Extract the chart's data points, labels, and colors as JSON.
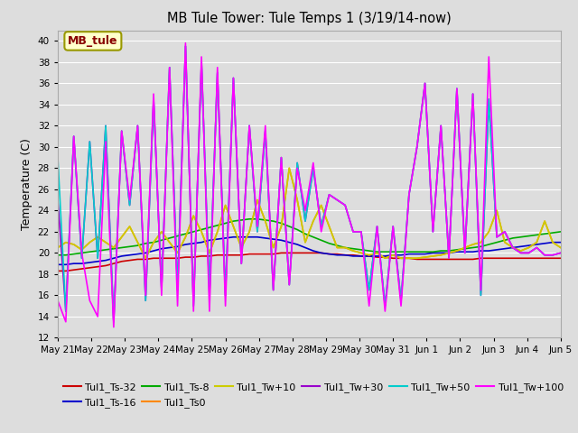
{
  "title": "MB Tule Tower: Tule Temps 1 (3/19/14-now)",
  "ylabel": "Temperature (C)",
  "ylim": [
    12,
    41
  ],
  "yticks": [
    12,
    14,
    16,
    18,
    20,
    22,
    24,
    26,
    28,
    30,
    32,
    34,
    36,
    38,
    40
  ],
  "background_color": "#dddddd",
  "grid_color": "#ffffff",
  "x_labels": [
    "May 21",
    "May 22",
    "May 23",
    "May 24",
    "May 25",
    "May 26",
    "May 27",
    "May 28",
    "May 29",
    "May 30",
    "May 31",
    "Jun 1",
    "Jun 2",
    "Jun 3",
    "Jun 4",
    "Jun 5"
  ],
  "series": {
    "Tul1_Ts-32": {
      "color": "#cc0000",
      "linewidth": 1.2,
      "values": [
        18.3,
        18.3,
        18.4,
        18.5,
        18.6,
        18.7,
        18.8,
        19.0,
        19.2,
        19.3,
        19.4,
        19.4,
        19.5,
        19.5,
        19.5,
        19.5,
        19.6,
        19.6,
        19.7,
        19.7,
        19.8,
        19.8,
        19.8,
        19.8,
        19.9,
        19.9,
        19.9,
        19.9,
        20.0,
        20.0,
        20.0,
        20.0,
        20.0,
        20.0,
        19.9,
        19.9,
        19.8,
        19.8,
        19.7,
        19.7,
        19.6,
        19.6,
        19.5,
        19.5,
        19.5,
        19.4,
        19.4,
        19.4,
        19.4,
        19.4,
        19.4,
        19.4,
        19.4,
        19.5,
        19.5,
        19.5,
        19.5,
        19.5,
        19.5,
        19.5,
        19.5,
        19.5,
        19.5,
        19.5
      ]
    },
    "Tul1_Ts-16": {
      "color": "#0000cc",
      "linewidth": 1.2,
      "values": [
        18.9,
        18.9,
        19.0,
        19.0,
        19.1,
        19.2,
        19.3,
        19.5,
        19.7,
        19.8,
        19.9,
        20.0,
        20.2,
        20.4,
        20.5,
        20.6,
        20.8,
        20.9,
        21.0,
        21.2,
        21.3,
        21.4,
        21.5,
        21.5,
        21.5,
        21.5,
        21.4,
        21.3,
        21.2,
        21.0,
        20.8,
        20.5,
        20.2,
        20.0,
        19.9,
        19.8,
        19.8,
        19.7,
        19.7,
        19.7,
        19.7,
        19.7,
        19.8,
        19.8,
        19.9,
        19.9,
        19.9,
        20.0,
        20.0,
        20.0,
        20.1,
        20.1,
        20.1,
        20.2,
        20.2,
        20.3,
        20.4,
        20.5,
        20.6,
        20.7,
        20.8,
        20.9,
        21.0,
        21.0
      ]
    },
    "Tul1_Ts-8": {
      "color": "#00aa00",
      "linewidth": 1.2,
      "values": [
        19.8,
        19.8,
        19.9,
        20.0,
        20.1,
        20.2,
        20.3,
        20.4,
        20.5,
        20.6,
        20.7,
        20.9,
        21.0,
        21.2,
        21.4,
        21.6,
        21.8,
        22.0,
        22.2,
        22.4,
        22.6,
        22.8,
        23.0,
        23.1,
        23.2,
        23.2,
        23.1,
        23.0,
        22.8,
        22.5,
        22.2,
        21.8,
        21.5,
        21.2,
        20.9,
        20.7,
        20.5,
        20.4,
        20.3,
        20.2,
        20.1,
        20.1,
        20.1,
        20.1,
        20.1,
        20.1,
        20.1,
        20.1,
        20.2,
        20.2,
        20.3,
        20.4,
        20.5,
        20.6,
        20.8,
        21.0,
        21.2,
        21.4,
        21.5,
        21.6,
        21.7,
        21.8,
        21.9,
        22.0
      ]
    },
    "Tul1_Ts0": {
      "color": "#ff8800",
      "linewidth": 1.2,
      "values": [
        20.5,
        21.0,
        20.8,
        20.3,
        21.0,
        21.5,
        21.0,
        20.5,
        21.5,
        22.5,
        21.0,
        19.5,
        21.0,
        22.0,
        21.0,
        20.0,
        21.5,
        23.5,
        22.0,
        20.0,
        22.0,
        24.5,
        22.5,
        20.5,
        22.0,
        25.0,
        23.0,
        20.5,
        22.5,
        28.0,
        25.0,
        21.0,
        23.0,
        24.5,
        22.5,
        20.5,
        20.5,
        20.2,
        20.0,
        19.8,
        20.0,
        19.5,
        19.8,
        19.5,
        19.5,
        19.5,
        19.6,
        19.7,
        19.8,
        20.0,
        20.2,
        20.5,
        20.8,
        21.0,
        22.0,
        24.0,
        21.0,
        20.5,
        20.2,
        20.5,
        21.0,
        23.0,
        21.0,
        20.5
      ]
    },
    "Tul1_Tw+10": {
      "color": "#cccc00",
      "linewidth": 1.2,
      "values": [
        20.5,
        21.0,
        20.8,
        20.3,
        21.0,
        21.5,
        21.0,
        20.5,
        21.5,
        22.5,
        21.0,
        19.5,
        21.0,
        22.0,
        21.0,
        20.0,
        21.5,
        23.5,
        22.0,
        20.0,
        22.0,
        24.5,
        22.5,
        20.5,
        22.0,
        25.0,
        23.0,
        20.5,
        22.5,
        28.0,
        25.0,
        21.0,
        23.0,
        24.5,
        22.5,
        20.5,
        20.5,
        20.2,
        20.0,
        19.8,
        20.0,
        19.5,
        19.8,
        19.5,
        19.5,
        19.5,
        19.6,
        19.7,
        19.8,
        20.0,
        20.2,
        20.5,
        20.8,
        21.0,
        22.0,
        24.0,
        21.0,
        20.5,
        20.2,
        20.5,
        21.0,
        23.0,
        21.0,
        20.5
      ]
    },
    "Tul1_Tw+30": {
      "color": "#9900cc",
      "linewidth": 1.2,
      "values": [
        25.0,
        14.5,
        31.0,
        19.5,
        30.5,
        19.5,
        32.0,
        13.5,
        31.5,
        24.5,
        32.0,
        15.5,
        34.5,
        16.5,
        37.5,
        16.5,
        39.5,
        15.0,
        38.0,
        16.0,
        37.0,
        16.0,
        36.5,
        19.0,
        32.0,
        22.0,
        31.5,
        16.5,
        29.0,
        17.0,
        28.5,
        23.0,
        28.0,
        22.5,
        25.5,
        25.0,
        24.5,
        22.0,
        22.0,
        16.5,
        22.5,
        15.0,
        22.5,
        15.5,
        25.5,
        30.0,
        36.0,
        22.0,
        32.0,
        19.5,
        35.5,
        20.0,
        35.0,
        16.0,
        34.5,
        21.5,
        22.0,
        20.5,
        20.0,
        20.0,
        20.5,
        19.8,
        19.8,
        20.0
      ]
    },
    "Tul1_Tw+50": {
      "color": "#00cccc",
      "linewidth": 1.2,
      "values": [
        29.0,
        14.5,
        31.0,
        19.5,
        30.5,
        19.5,
        32.0,
        13.5,
        31.5,
        24.5,
        32.0,
        15.5,
        34.5,
        16.5,
        37.5,
        16.5,
        39.5,
        15.0,
        38.0,
        16.0,
        37.0,
        16.0,
        36.5,
        19.0,
        32.0,
        22.0,
        31.5,
        16.5,
        29.0,
        17.0,
        28.5,
        23.0,
        28.0,
        22.5,
        25.5,
        25.0,
        24.5,
        22.0,
        22.0,
        16.5,
        22.5,
        15.0,
        22.5,
        15.5,
        25.5,
        30.0,
        36.0,
        22.0,
        32.0,
        19.5,
        35.5,
        20.0,
        35.0,
        16.0,
        34.5,
        21.5,
        22.0,
        20.5,
        20.0,
        20.0,
        20.5,
        19.8,
        19.8,
        20.0
      ]
    },
    "Tul1_Tw+100": {
      "color": "#ff00ff",
      "linewidth": 1.2,
      "values": [
        15.5,
        13.5,
        31.0,
        20.0,
        15.5,
        14.0,
        30.5,
        13.0,
        31.5,
        25.0,
        32.0,
        16.0,
        35.0,
        16.0,
        37.5,
        15.0,
        39.8,
        14.5,
        38.5,
        14.5,
        37.5,
        15.0,
        36.5,
        19.0,
        32.0,
        22.5,
        32.0,
        16.5,
        29.0,
        17.0,
        28.0,
        24.0,
        28.5,
        22.0,
        25.5,
        25.0,
        24.5,
        22.0,
        22.0,
        15.0,
        22.5,
        14.5,
        22.5,
        15.0,
        25.5,
        30.0,
        36.0,
        22.0,
        32.0,
        19.5,
        35.5,
        20.0,
        35.0,
        16.5,
        38.5,
        21.5,
        22.0,
        20.5,
        20.0,
        20.0,
        20.5,
        19.8,
        19.8,
        20.0
      ]
    }
  },
  "legend_order": [
    "Tul1_Ts-32",
    "Tul1_Ts-16",
    "Tul1_Ts-8",
    "Tul1_Ts0",
    "Tul1_Tw+10",
    "Tul1_Tw+30",
    "Tul1_Tw+50",
    "Tul1_Tw+100"
  ],
  "annotation_text": "MB_tule",
  "annotation_color": "#880000",
  "annotation_bg": "#ffffcc",
  "annotation_border": "#999900"
}
